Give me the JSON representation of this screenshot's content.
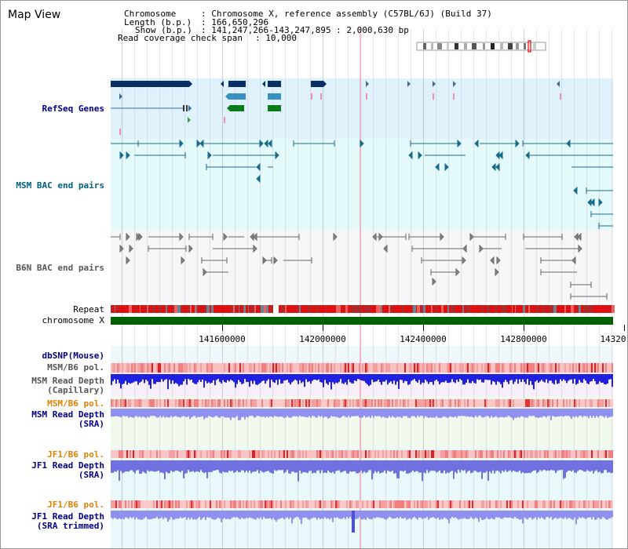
{
  "view_title": "Map View",
  "info": {
    "chromosome_label": "Chromosome",
    "chromosome_value": ": Chromosome X, reference assembly (C57BL/6J) (Build 37)",
    "length_label": "Length (b.p.)",
    "length_value": ": 166,650,296",
    "show_label": "Show (b.p.)",
    "show_value": ": 141,247,266-143,247,895 : 2,000,630 bp",
    "coverage_label": "Read coverage check span",
    "coverage_value": ": 10,000"
  },
  "tracks": {
    "refseq": "RefSeq Genes",
    "msm_bac": "MSM BAC end pairs",
    "b6n_bac": "B6N BAC end pairs",
    "repeat": "Repeat",
    "chromosome": "chromosome X",
    "dbsnp": "dbSNP(Mouse)",
    "msm_b6_pol_1": "MSM/B6 pol.",
    "msm_depth_cap_1": "MSM Read Depth",
    "msm_depth_cap_2": "(Capillary)",
    "msm_b6_pol_2": "MSM/B6 pol.",
    "msm_depth_sra_1": "MSM Read Depth",
    "msm_depth_sra_2": "(SRA)",
    "jf1_b6_pol_1": "JF1/B6 pol.",
    "jf1_depth_sra_1": "JF1 Read Depth",
    "jf1_depth_sra_2": "(SRA)",
    "jf1_b6_pol_2": "JF1/B6 pol.",
    "jf1_depth_trim_1": "JF1 Read Depth",
    "jf1_depth_trim_2": "(SRA trimmed)"
  },
  "ruler": {
    "labels": [
      "141600000",
      "142000000",
      "142400000",
      "142800000",
      "14320"
    ]
  },
  "colors": {
    "refseq_label": "#000080",
    "msm_bac_label": "#006080",
    "b6n_bac_label": "#555555",
    "msm_label": "#000080",
    "jf1_label": "#000080",
    "pol_label_jf1": "#e08000",
    "pol_label_msm_sra": "#e08000",
    "refseq_bg": "#dff2fb",
    "msm_bac_bg": "#e4f9f9",
    "b6n_bac_bg": "#f6f6f8",
    "chromosome_bar": "#006000"
  }
}
